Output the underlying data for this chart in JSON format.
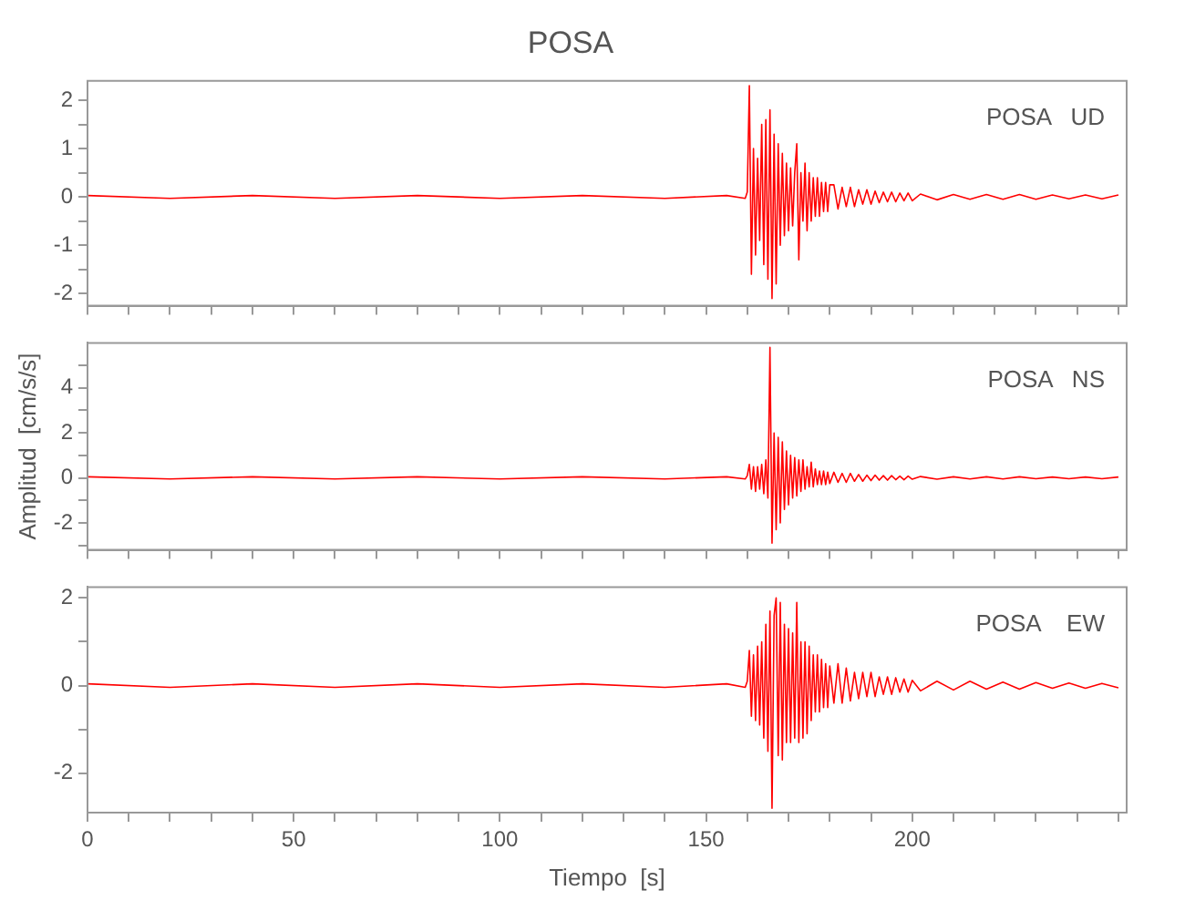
{
  "chart_data": [
    {
      "type": "line",
      "title": "POSA",
      "annotations": [
        "POSA   UD"
      ],
      "tick_labels": "y",
      "xlim": [
        0,
        252
      ],
      "ylim": [
        -2.25,
        2.4
      ],
      "xticks": [
        0,
        {
          "value": 10,
          "label": null
        },
        {
          "value": 20,
          "label": null
        },
        {
          "value": 30,
          "label": null
        },
        {
          "value": 40,
          "label": null
        },
        50,
        {
          "value": 60,
          "label": null
        },
        {
          "value": 70,
          "label": null
        },
        {
          "value": 80,
          "label": null
        },
        {
          "value": 90,
          "label": null
        },
        100,
        {
          "value": 110,
          "label": null
        },
        {
          "value": 120,
          "label": null
        },
        {
          "value": 130,
          "label": null
        },
        {
          "value": 140,
          "label": null
        },
        150,
        {
          "value": 160,
          "label": null
        },
        {
          "value": 170,
          "label": null
        },
        {
          "value": 180,
          "label": null
        },
        {
          "value": 190,
          "label": null
        },
        200,
        {
          "value": 210,
          "label": null
        },
        {
          "value": 220,
          "label": null
        },
        {
          "value": 230,
          "label": null
        },
        {
          "value": 240,
          "label": null
        },
        {
          "value": 250,
          "label": null
        }
      ],
      "yticks": [
        -2,
        {
          "value": -1.5,
          "label": null
        },
        -1,
        {
          "value": -0.5,
          "label": null
        },
        0,
        {
          "value": 0.5,
          "label": null
        },
        1,
        {
          "value": 1.5,
          "label": null
        },
        2
      ],
      "x": [
        0,
        20,
        40,
        60,
        80,
        100,
        120,
        140,
        155,
        159.5,
        160,
        160.5,
        161,
        161.5,
        162,
        162.5,
        163,
        163.5,
        164,
        164.5,
        165,
        165.5,
        166,
        166.5,
        167,
        167.5,
        168,
        168.5,
        169,
        169.5,
        170,
        170.5,
        171,
        171.5,
        172,
        172.5,
        173,
        173.5,
        174,
        174.5,
        175,
        175.5,
        176,
        176.5,
        177,
        177.5,
        178,
        178.5,
        179,
        179.5,
        180,
        181,
        182,
        183,
        184,
        185,
        186,
        187,
        188,
        189,
        190,
        191,
        192,
        193,
        194,
        195,
        196,
        197,
        198,
        199,
        200,
        202,
        206,
        210,
        214,
        218,
        222,
        226,
        230,
        234,
        238,
        242,
        246,
        250
      ],
      "series": [
        {
          "color": "#ff0000",
          "values": [
            0.03,
            -0.03,
            0.03,
            -0.03,
            0.03,
            -0.03,
            0.03,
            -0.03,
            0.03,
            -0.03,
            0.1,
            2.3,
            -1.6,
            1.0,
            -1.2,
            0.8,
            -0.9,
            1.5,
            -1.4,
            1.6,
            -1.7,
            1.8,
            -2.1,
            1.3,
            -1.8,
            1.1,
            -1.0,
            0.9,
            -0.8,
            0.7,
            -0.7,
            0.6,
            -0.6,
            0.5,
            1.1,
            -1.3,
            0.5,
            -0.5,
            0.7,
            -0.7,
            0.5,
            -0.5,
            0.4,
            -0.4,
            0.4,
            -0.4,
            0.3,
            -0.3,
            0.3,
            -0.3,
            0.25,
            0.25,
            -0.25,
            0.2,
            -0.2,
            0.2,
            -0.2,
            0.15,
            -0.15,
            0.15,
            -0.15,
            0.12,
            -0.12,
            0.1,
            -0.1,
            0.1,
            -0.1,
            0.08,
            -0.08,
            0.08,
            -0.08,
            0.06,
            -0.06,
            0.05,
            -0.05,
            0.05,
            -0.05,
            0.05,
            -0.05,
            0.04,
            -0.04,
            0.04,
            -0.04,
            0.04
          ]
        }
      ]
    },
    {
      "type": "line",
      "ylabel": "Amplitud  [cm/s/s]",
      "annotations": [
        "POSA   NS"
      ],
      "tick_labels": "y",
      "xlim": [
        0,
        252
      ],
      "ylim": [
        -3.2,
        6
      ],
      "xticks": [
        0,
        {
          "value": 10,
          "label": null
        },
        {
          "value": 20,
          "label": null
        },
        {
          "value": 30,
          "label": null
        },
        {
          "value": 40,
          "label": null
        },
        50,
        {
          "value": 60,
          "label": null
        },
        {
          "value": 70,
          "label": null
        },
        {
          "value": 80,
          "label": null
        },
        {
          "value": 90,
          "label": null
        },
        100,
        {
          "value": 110,
          "label": null
        },
        {
          "value": 120,
          "label": null
        },
        {
          "value": 130,
          "label": null
        },
        {
          "value": 140,
          "label": null
        },
        150,
        {
          "value": 160,
          "label": null
        },
        {
          "value": 170,
          "label": null
        },
        {
          "value": 180,
          "label": null
        },
        {
          "value": 190,
          "label": null
        },
        200,
        {
          "value": 210,
          "label": null
        },
        {
          "value": 220,
          "label": null
        },
        {
          "value": 230,
          "label": null
        },
        {
          "value": 240,
          "label": null
        },
        {
          "value": 250,
          "label": null
        }
      ],
      "yticks": [
        {
          "value": -3,
          "label": null
        },
        -2,
        {
          "value": -1,
          "label": null
        },
        0,
        {
          "value": 1,
          "label": null
        },
        2,
        {
          "value": 3,
          "label": null
        },
        4,
        {
          "value": 5,
          "label": null
        }
      ],
      "x": [
        0,
        20,
        40,
        60,
        80,
        100,
        120,
        140,
        155,
        159.5,
        160,
        160.5,
        161,
        161.5,
        162,
        162.5,
        163,
        163.5,
        164,
        164.5,
        165,
        165.5,
        166,
        166.5,
        167,
        167.5,
        168,
        168.5,
        169,
        169.5,
        170,
        170.5,
        171,
        171.5,
        172,
        172.5,
        173,
        173.5,
        174,
        174.5,
        175,
        175.5,
        176,
        176.5,
        177,
        177.5,
        178,
        178.5,
        179,
        179.5,
        180,
        181,
        182,
        183,
        184,
        185,
        186,
        187,
        188,
        189,
        190,
        191,
        192,
        193,
        194,
        195,
        196,
        197,
        198,
        199,
        200,
        202,
        206,
        210,
        214,
        218,
        222,
        226,
        230,
        234,
        238,
        242,
        246,
        250
      ],
      "series": [
        {
          "color": "#ff0000",
          "values": [
            0.05,
            -0.05,
            0.05,
            -0.05,
            0.05,
            -0.05,
            0.05,
            -0.05,
            0.05,
            -0.05,
            0.1,
            0.6,
            -0.5,
            0.5,
            -0.6,
            0.5,
            -0.5,
            0.6,
            -0.7,
            0.8,
            -0.9,
            5.8,
            -2.9,
            2.0,
            -2.3,
            1.8,
            -2.0,
            1.6,
            -1.4,
            1.2,
            -1.2,
            1.0,
            -0.9,
            0.9,
            -0.8,
            0.8,
            -0.6,
            0.8,
            -0.5,
            0.5,
            -0.4,
            0.7,
            -0.4,
            0.4,
            -0.3,
            0.3,
            -0.3,
            0.3,
            -0.3,
            0.25,
            -0.25,
            0.25,
            -0.2,
            0.2,
            -0.2,
            0.2,
            -0.15,
            0.15,
            -0.15,
            0.12,
            -0.12,
            0.12,
            -0.1,
            0.1,
            -0.1,
            0.1,
            -0.08,
            0.08,
            -0.08,
            0.08,
            -0.06,
            0.06,
            -0.06,
            0.05,
            -0.05,
            0.05,
            -0.05,
            0.05,
            -0.04,
            0.04,
            -0.04,
            0.04,
            -0.04,
            0.04
          ]
        }
      ]
    },
    {
      "type": "line",
      "xlabel": "Tiempo  [s]",
      "annotations": [
        "POSA    EW"
      ],
      "xlim": [
        0,
        252
      ],
      "ylim": [
        -2.9,
        2.25
      ],
      "xticks": [
        0,
        {
          "value": 10,
          "label": null
        },
        {
          "value": 20,
          "label": null
        },
        {
          "value": 30,
          "label": null
        },
        {
          "value": 40,
          "label": null
        },
        50,
        {
          "value": 60,
          "label": null
        },
        {
          "value": 70,
          "label": null
        },
        {
          "value": 80,
          "label": null
        },
        {
          "value": 90,
          "label": null
        },
        100,
        {
          "value": 110,
          "label": null
        },
        {
          "value": 120,
          "label": null
        },
        {
          "value": 130,
          "label": null
        },
        {
          "value": 140,
          "label": null
        },
        150,
        {
          "value": 160,
          "label": null
        },
        {
          "value": 170,
          "label": null
        },
        {
          "value": 180,
          "label": null
        },
        {
          "value": 190,
          "label": null
        },
        200,
        {
          "value": 210,
          "label": null
        },
        {
          "value": 220,
          "label": null
        },
        {
          "value": 230,
          "label": null
        },
        {
          "value": 240,
          "label": null
        },
        {
          "value": 250,
          "label": null
        }
      ],
      "yticks": [
        -2,
        {
          "value": -1,
          "label": null
        },
        0,
        {
          "value": 1,
          "label": null
        },
        2
      ],
      "x": [
        0,
        20,
        40,
        60,
        80,
        100,
        120,
        140,
        155,
        159.5,
        160,
        160.5,
        161,
        161.5,
        162,
        162.5,
        163,
        163.5,
        164,
        164.5,
        165,
        165.5,
        166,
        166.5,
        167,
        167.5,
        168,
        168.5,
        169,
        169.5,
        170,
        170.5,
        171,
        171.5,
        172,
        172.5,
        173,
        173.5,
        174,
        174.5,
        175,
        175.5,
        176,
        176.5,
        177,
        177.5,
        178,
        178.5,
        179,
        179.5,
        180,
        181,
        182,
        183,
        184,
        185,
        186,
        187,
        188,
        189,
        190,
        191,
        192,
        193,
        194,
        195,
        196,
        197,
        198,
        199,
        200,
        202,
        206,
        210,
        214,
        218,
        222,
        226,
        230,
        234,
        238,
        242,
        246,
        250
      ],
      "series": [
        {
          "color": "#ff0000",
          "values": [
            0.04,
            -0.04,
            0.04,
            -0.04,
            0.04,
            -0.04,
            0.04,
            -0.04,
            0.04,
            -0.04,
            0.1,
            0.8,
            -0.7,
            0.7,
            -0.8,
            0.9,
            -0.9,
            1.0,
            -1.2,
            1.4,
            -1.5,
            1.7,
            -2.8,
            1.6,
            2.0,
            -1.6,
            1.9,
            -1.7,
            1.4,
            -1.3,
            1.3,
            -1.3,
            1.2,
            -1.2,
            1.9,
            -1.3,
            1.0,
            -1.2,
            1.0,
            -1.1,
            0.9,
            -0.8,
            0.7,
            -0.6,
            0.7,
            -0.6,
            0.6,
            -0.5,
            0.5,
            -0.5,
            0.45,
            -0.4,
            0.5,
            -0.4,
            0.4,
            -0.35,
            0.3,
            -0.3,
            0.3,
            -0.25,
            0.3,
            -0.25,
            0.2,
            -0.2,
            0.2,
            -0.2,
            0.18,
            -0.15,
            0.15,
            -0.15,
            0.12,
            -0.12,
            0.1,
            -0.1,
            0.1,
            -0.08,
            0.08,
            -0.08,
            0.07,
            -0.06,
            0.06,
            -0.06,
            0.05,
            -0.05
          ]
        }
      ]
    }
  ]
}
